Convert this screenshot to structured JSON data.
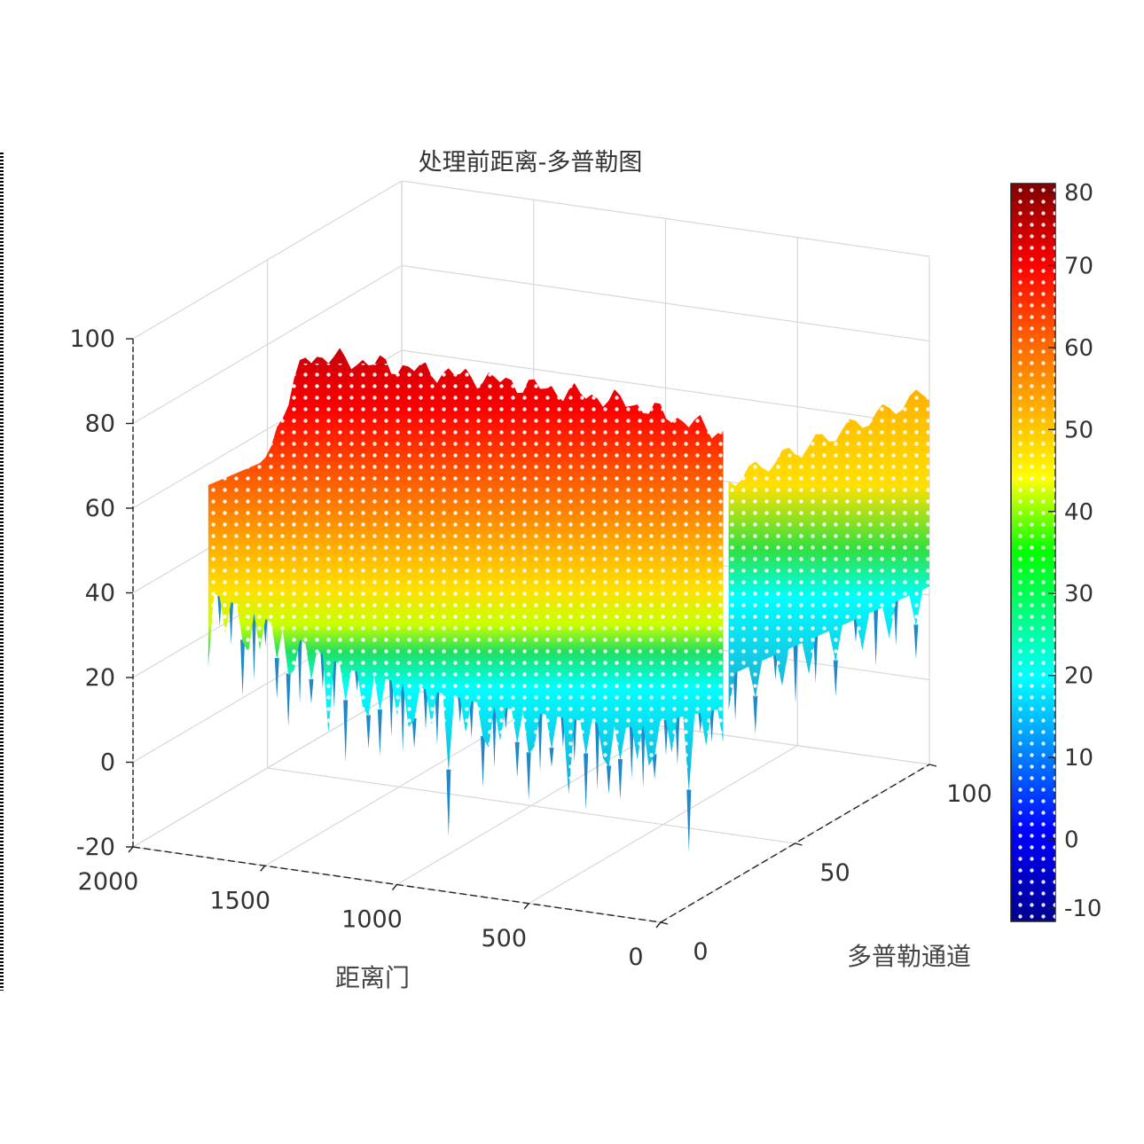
{
  "chart_data": {
    "type": "surface",
    "title": "处理前距离-多普勒图",
    "xlabel": "距离门",
    "ylabel": "多普勒通道",
    "zlabel": "",
    "x_range": [
      0,
      2000
    ],
    "y_range": [
      0,
      100
    ],
    "z_range": [
      -20,
      100
    ],
    "x_ticks": [
      "2000",
      "1500",
      "1000",
      "500",
      "0"
    ],
    "y_ticks": [
      "0",
      "50",
      "100"
    ],
    "z_ticks": [
      "100",
      "80",
      "60",
      "40",
      "20",
      "0",
      "-20"
    ],
    "grid": true,
    "colormap": "jet",
    "colorbar": {
      "range": [
        -10,
        80
      ],
      "ticks": [
        "80",
        "70",
        "60",
        "50",
        "40",
        "30",
        "20",
        "10",
        "0",
        "-10"
      ],
      "placement": "right"
    },
    "grid_sampling": {
      "range_gates": [
        2000,
        1900,
        1800,
        1700,
        1600,
        1500,
        1400,
        1300,
        1200,
        1100,
        1000,
        900,
        800,
        700,
        600,
        500,
        400,
        300,
        200,
        100,
        0
      ],
      "doppler_channels": [
        0,
        10,
        20,
        30,
        40,
        50,
        60,
        70,
        80,
        90,
        100
      ]
    },
    "surface_profile": {
      "description_of_values": "approximate peak amplitude along range gates",
      "range_gate": [
        2000,
        1800,
        1650,
        1500,
        1000,
        500,
        150,
        0
      ],
      "peak_value": [
        55,
        62,
        88,
        88,
        87,
        85,
        80,
        70
      ],
      "floor_value": [
        30,
        25,
        20,
        15,
        10,
        8,
        15,
        25
      ]
    }
  }
}
